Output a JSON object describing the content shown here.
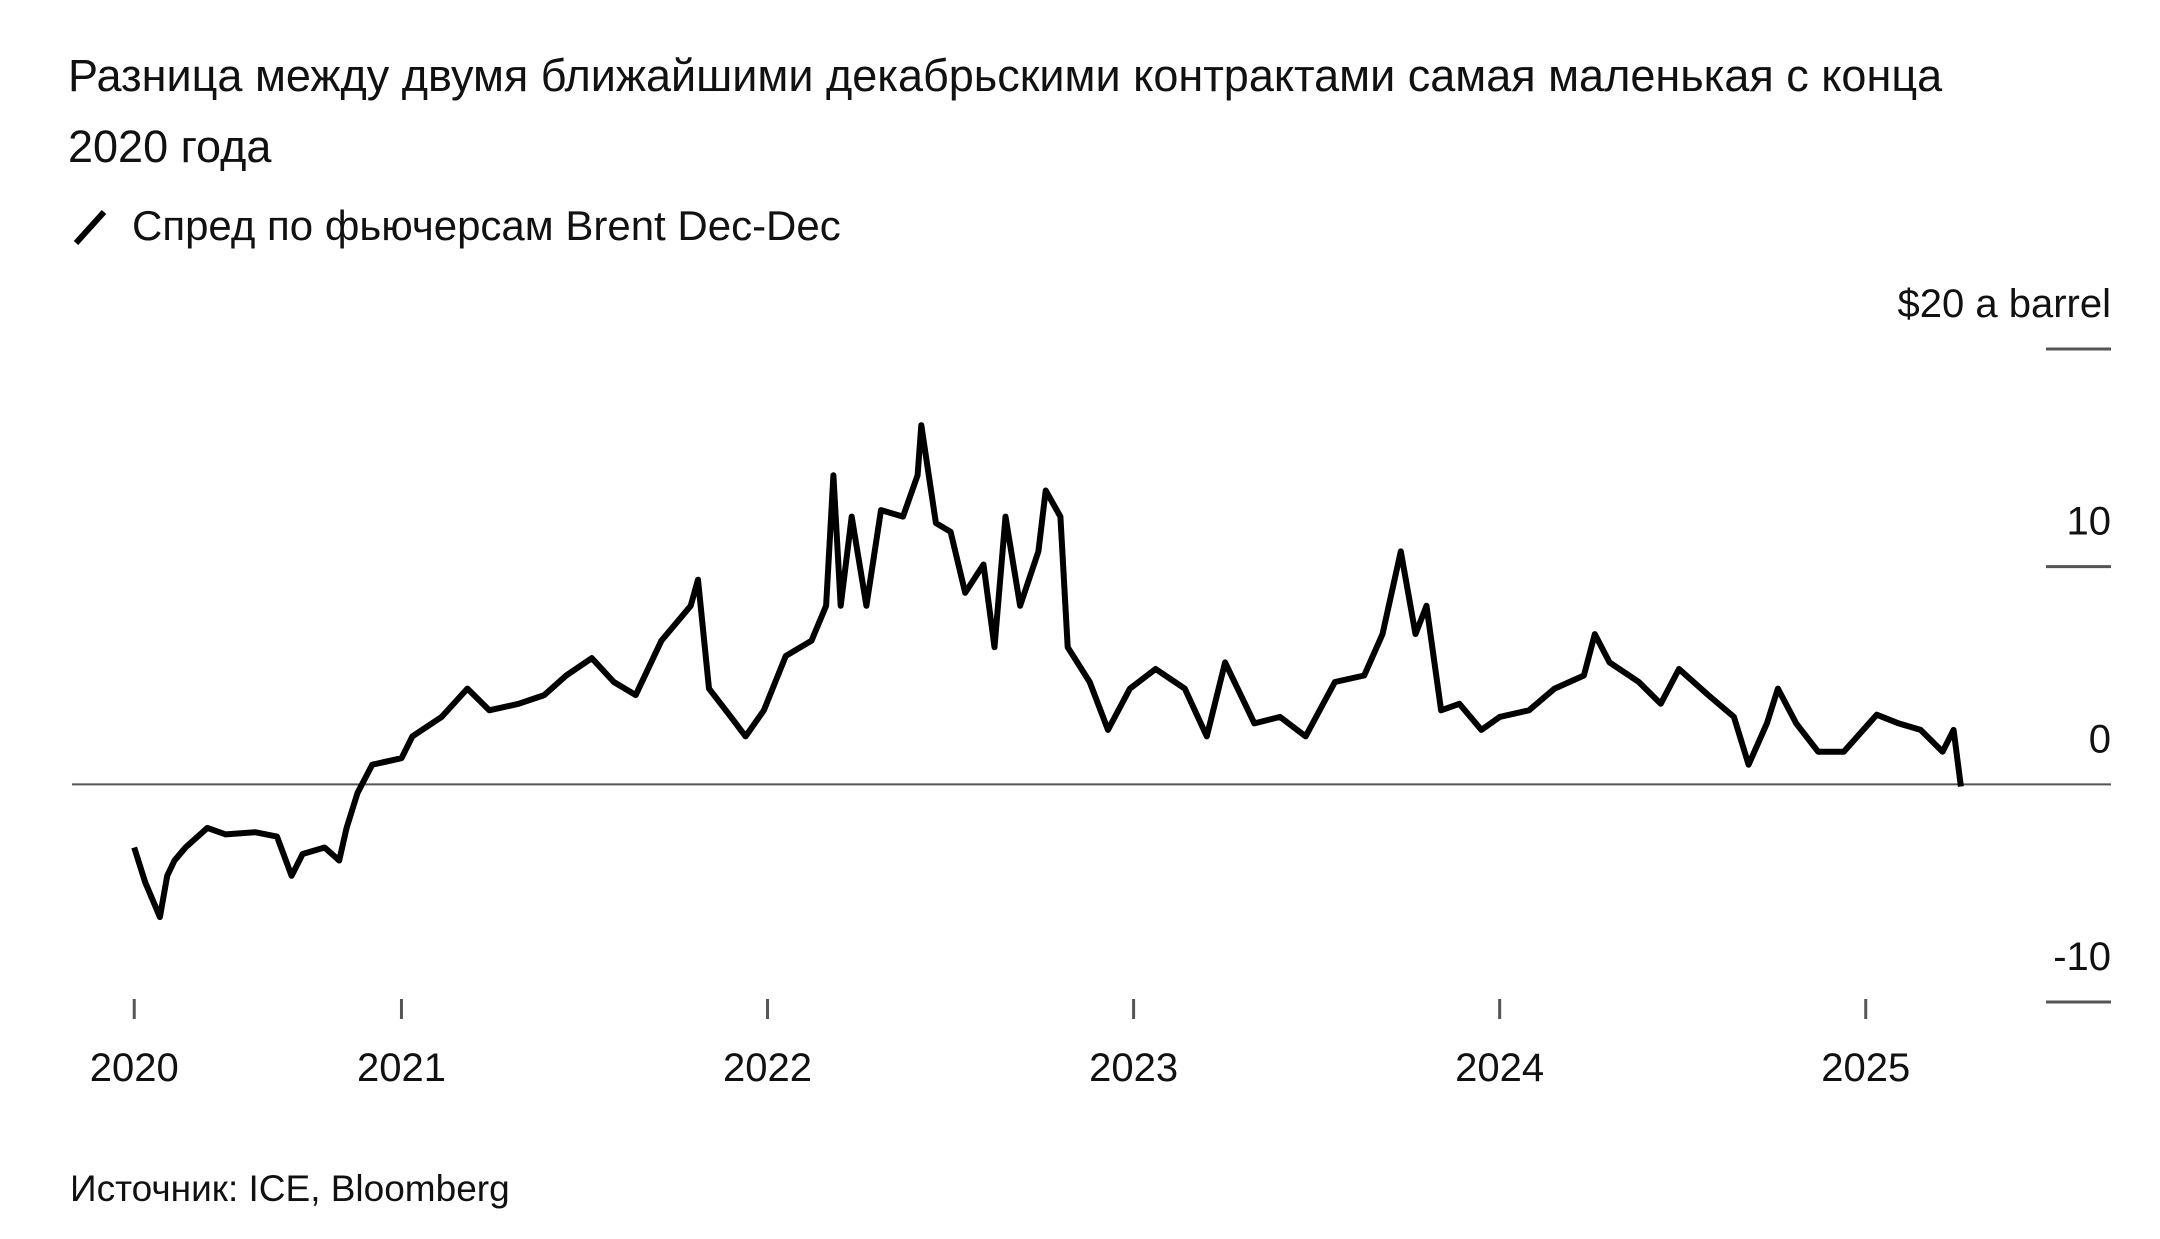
{
  "chart_data": {
    "type": "line",
    "title": "Разница между двумя ближайшими декабрьскими контрактами самая маленькая с конца 2020 года",
    "source": "Источник: ICE, Bloomberg",
    "x": [
      2020.27,
      2020.3,
      2020.34,
      2020.36,
      2020.38,
      2020.41,
      2020.47,
      2020.52,
      2020.6,
      2020.66,
      2020.7,
      2020.73,
      2020.79,
      2020.83,
      2020.85,
      2020.88,
      2020.92,
      2021.0,
      2021.03,
      2021.11,
      2021.18,
      2021.24,
      2021.32,
      2021.39,
      2021.45,
      2021.52,
      2021.58,
      2021.64,
      2021.71,
      2021.79,
      2021.81,
      2021.84,
      2021.9,
      2021.94,
      2021.99,
      2022.05,
      2022.12,
      2022.16,
      2022.18,
      2022.2,
      2022.23,
      2022.27,
      2022.31,
      2022.37,
      2022.41,
      2022.42,
      2022.46,
      2022.5,
      2022.54,
      2022.59,
      2022.62,
      2022.65,
      2022.69,
      2022.74,
      2022.76,
      2022.8,
      2022.82,
      2022.88,
      2022.93,
      2022.99,
      2023.06,
      2023.14,
      2023.2,
      2023.25,
      2023.33,
      2023.4,
      2023.47,
      2023.55,
      2023.63,
      2023.68,
      2023.73,
      2023.77,
      2023.8,
      2023.84,
      2023.89,
      2023.95,
      2024.0,
      2024.08,
      2024.15,
      2024.23,
      2024.26,
      2024.3,
      2024.38,
      2024.44,
      2024.49,
      2024.57,
      2024.64,
      2024.68,
      2024.73,
      2024.76,
      2024.81,
      2024.87,
      2024.94,
      2025.03,
      2025.09,
      2025.15,
      2025.21,
      2025.24,
      2025.26
    ],
    "series": [
      {
        "name": "Спред по фьючерсам Brent Dec-Dec",
        "color": "#000000",
        "values": [
          -2.9,
          -4.5,
          -6.1,
          -4.2,
          -3.5,
          -2.9,
          -2.0,
          -2.3,
          -2.2,
          -2.4,
          -4.2,
          -3.2,
          -2.9,
          -3.5,
          -2.0,
          -0.4,
          0.9,
          1.2,
          2.2,
          3.1,
          4.4,
          3.4,
          3.7,
          4.1,
          5.0,
          5.8,
          4.7,
          4.1,
          6.6,
          8.2,
          9.4,
          4.4,
          3.1,
          2.2,
          3.4,
          5.9,
          6.6,
          8.2,
          14.2,
          8.2,
          12.3,
          8.2,
          12.6,
          12.3,
          14.2,
          16.5,
          12.0,
          11.6,
          8.8,
          10.1,
          6.3,
          12.3,
          8.2,
          10.7,
          13.5,
          12.3,
          6.3,
          4.7,
          2.5,
          4.4,
          5.3,
          4.4,
          2.2,
          5.6,
          2.8,
          3.1,
          2.2,
          4.7,
          5.0,
          6.9,
          10.7,
          6.9,
          8.2,
          3.4,
          3.7,
          2.5,
          3.1,
          3.4,
          4.4,
          5.0,
          6.9,
          5.6,
          4.7,
          3.7,
          5.3,
          4.1,
          3.1,
          0.9,
          2.8,
          4.4,
          2.8,
          1.5,
          1.5,
          3.2,
          2.8,
          2.5,
          1.5,
          2.5,
          -0.1
        ]
      }
    ],
    "xlim": [
      2020.1,
      2025.67
    ],
    "xticks": [
      {
        "value": 2020.27,
        "label": "2020"
      },
      2021,
      2022,
      2023,
      2024,
      2025
    ],
    "ylim": [
      -10,
      20
    ],
    "yticks": [
      -10,
      0,
      10,
      {
        "value": 20,
        "label": "$20 a barrel"
      }
    ]
  }
}
